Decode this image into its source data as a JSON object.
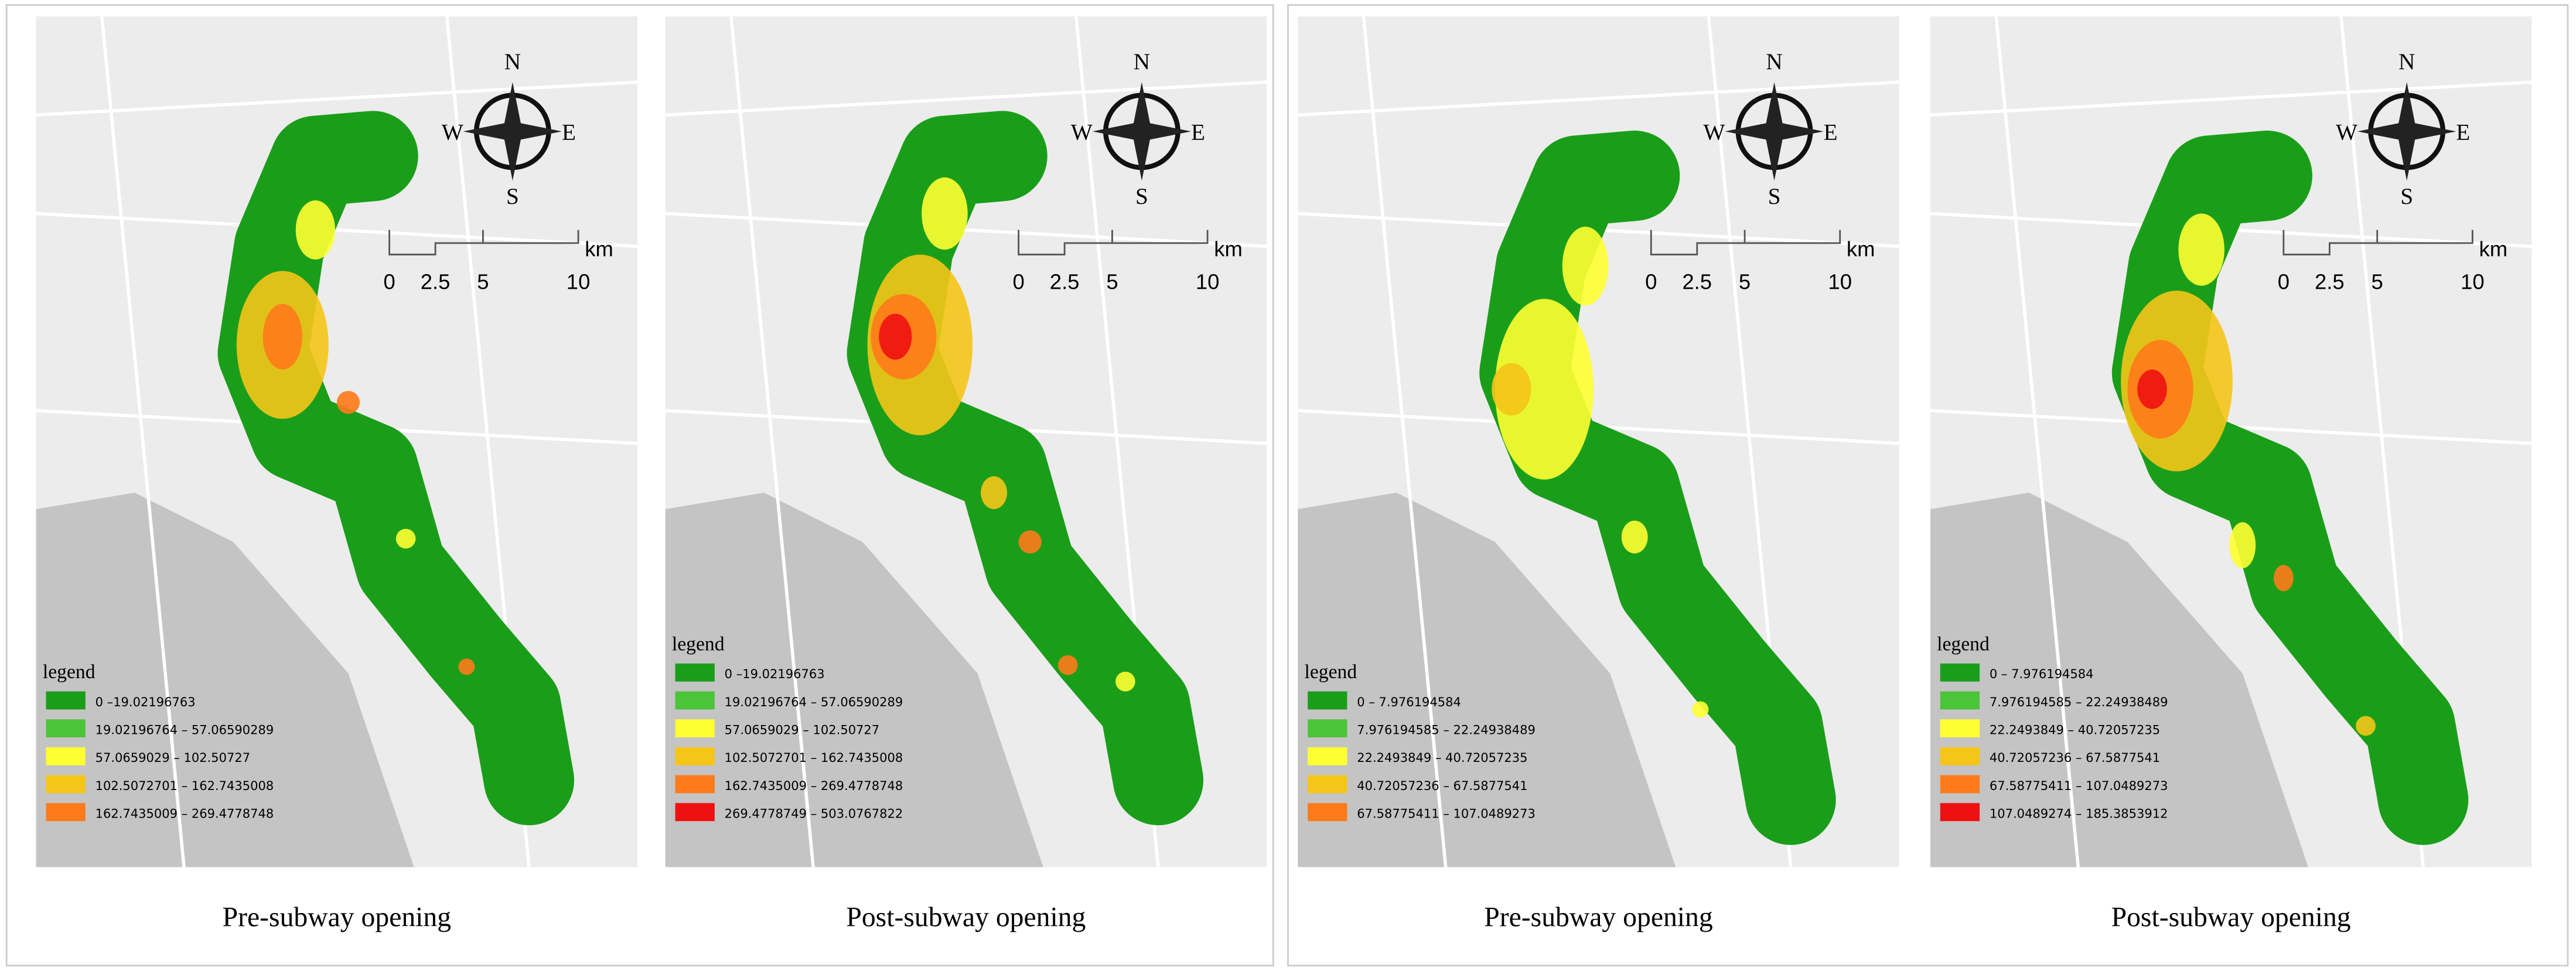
{
  "compass": {
    "n": "N",
    "e": "E",
    "s": "S",
    "w": "W"
  },
  "scale": {
    "ticks": [
      "0",
      "2.5",
      "5",
      "10"
    ],
    "unit": "km"
  },
  "panels": [
    {
      "caption": "Pre-subway opening",
      "legend": {
        "title": "legend",
        "items": [
          {
            "label": "0 –19.02196763",
            "color": "#1a9e1a"
          },
          {
            "label": "19.02196764 – 57.06590289",
            "color": "#4cc43a"
          },
          {
            "label": "57.0659029 – 102.50727",
            "color": "#ffff33"
          },
          {
            "label": "102.5072701 – 162.7435008",
            "color": "#f5c518"
          },
          {
            "label": "162.7435009 – 269.4778748",
            "color": "#ff7a1a"
          }
        ]
      }
    },
    {
      "caption": "Post-subway opening",
      "legend": {
        "title": "legend",
        "items": [
          {
            "label": "0 –19.02196763",
            "color": "#1a9e1a"
          },
          {
            "label": "19.02196764 – 57.06590289",
            "color": "#4cc43a"
          },
          {
            "label": "57.0659029 – 102.50727",
            "color": "#ffff33"
          },
          {
            "label": "102.5072701 – 162.7435008",
            "color": "#f5c518"
          },
          {
            "label": "162.7435009 – 269.4778748",
            "color": "#ff7a1a"
          },
          {
            "label": "269.4778749 – 503.0767822",
            "color": "#ee1111"
          }
        ]
      }
    },
    {
      "caption": "Pre-subway opening",
      "legend": {
        "title": "legend",
        "items": [
          {
            "label": "0 – 7.976194584",
            "color": "#1a9e1a"
          },
          {
            "label": "7.976194585 – 22.24938489",
            "color": "#4cc43a"
          },
          {
            "label": "22.2493849 – 40.72057235",
            "color": "#ffff33"
          },
          {
            "label": "40.72057236 – 67.5877541",
            "color": "#f5c518"
          },
          {
            "label": "67.58775411 – 107.0489273",
            "color": "#ff7a1a"
          }
        ]
      }
    },
    {
      "caption": "Post-subway opening",
      "legend": {
        "title": "legend",
        "items": [
          {
            "label": "0 – 7.976194584",
            "color": "#1a9e1a"
          },
          {
            "label": "7.976194585 – 22.24938489",
            "color": "#4cc43a"
          },
          {
            "label": "22.2493849 – 40.72057235",
            "color": "#ffff33"
          },
          {
            "label": "40.72057236 – 67.5877541",
            "color": "#f5c518"
          },
          {
            "label": "67.58775411 – 107.0489273",
            "color": "#ff7a1a"
          },
          {
            "label": "107.0489274 – 185.3853912",
            "color": "#ee1111"
          }
        ]
      }
    }
  ]
}
